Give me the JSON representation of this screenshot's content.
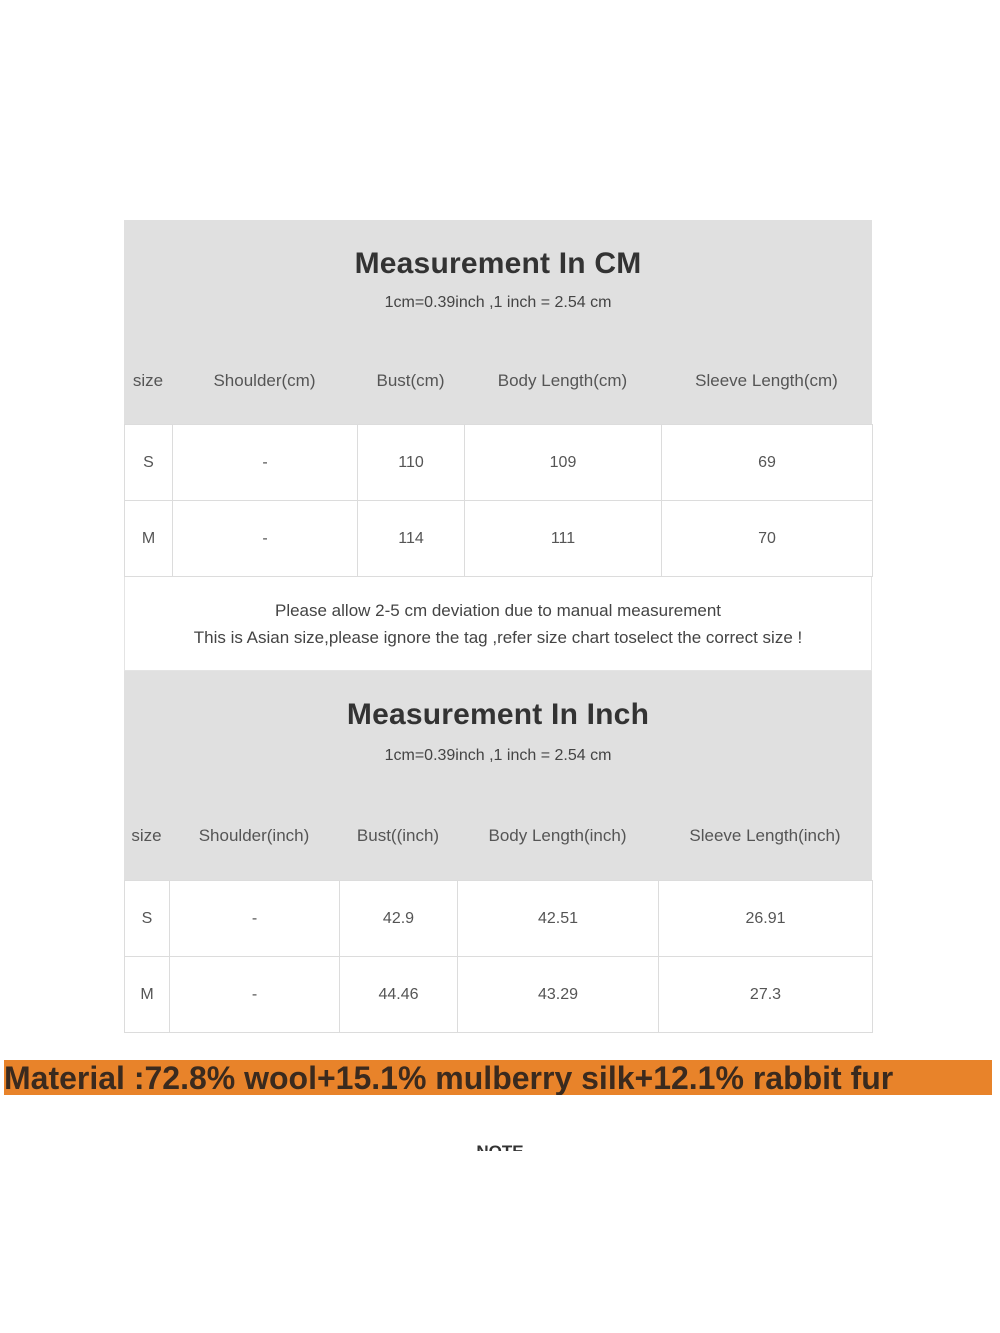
{
  "cm_section": {
    "title": "Measurement In CM",
    "subtitle": "1cm=0.39inch ,1 inch = 2.54 cm",
    "headers": [
      "size",
      "Shoulder(cm)",
      "Bust(cm)",
      "Body Length(cm)",
      "Sleeve Length(cm)"
    ],
    "rows": [
      [
        "S",
        "-",
        "110",
        "109",
        "69"
      ],
      [
        "M",
        "-",
        "114",
        "111",
        "70"
      ]
    ]
  },
  "notes": {
    "line1": "Please allow 2-5 cm deviation due to manual measurement",
    "line2": "This is Asian size,please ignore the tag ,refer size chart toselect the correct size !"
  },
  "inch_section": {
    "title": "Measurement In Inch",
    "subtitle": "1cm=0.39inch ,1 inch = 2.54 cm",
    "headers": [
      "size",
      "Shoulder(inch)",
      "Bust((inch)",
      "Body Length(inch)",
      "Sleeve Length(inch)"
    ],
    "rows": [
      [
        "S",
        "-",
        "42.9",
        "42.51",
        "26.91"
      ],
      [
        "M",
        "-",
        "44.46",
        "43.29",
        "27.3"
      ]
    ]
  },
  "material": "Material :72.8% wool+15.1% mulberry silk+12.1% rabbit fur",
  "note_heading": "NOTE",
  "colors": {
    "header_bg": "#e0e0e0",
    "material_bg": "#e8832a"
  }
}
